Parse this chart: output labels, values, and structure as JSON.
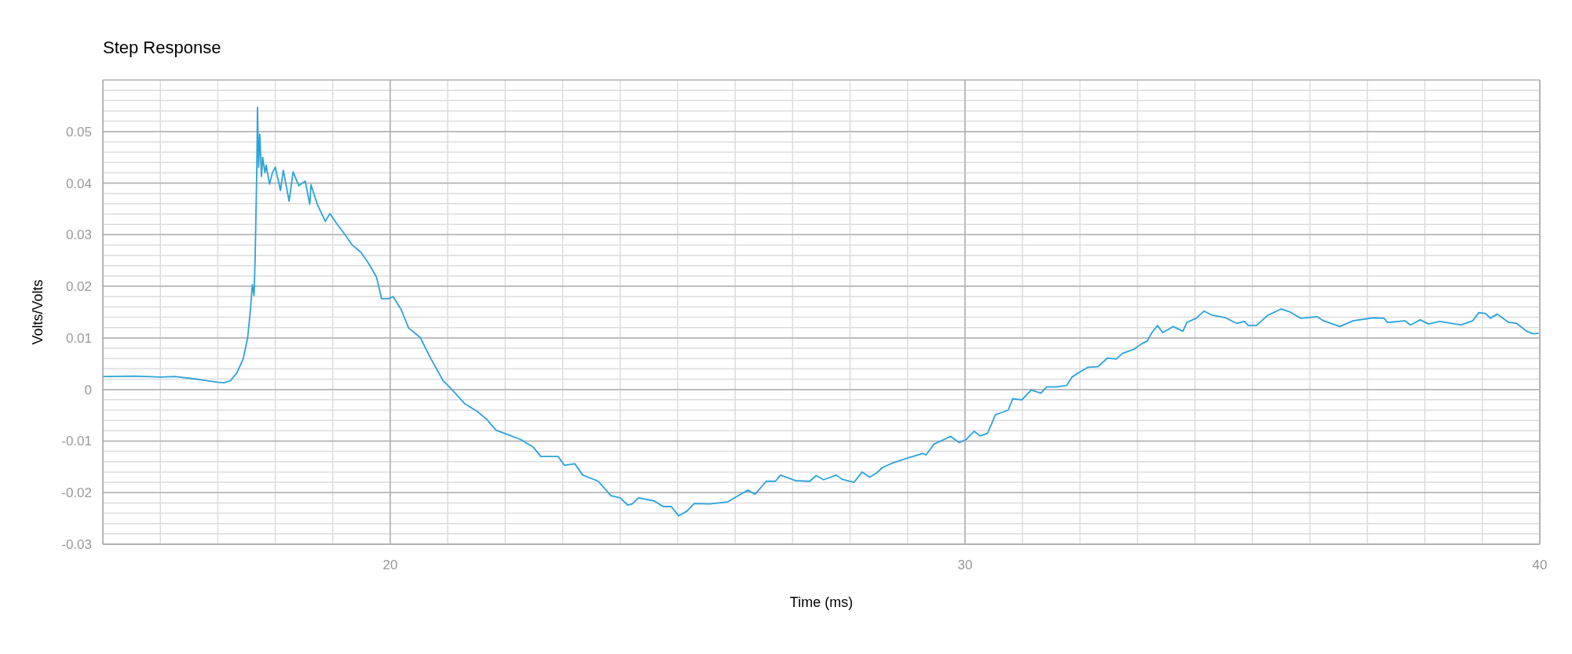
{
  "chart_data": {
    "type": "line",
    "title": "Step Response",
    "xlabel": "Time (ms)",
    "ylabel": "Volts/Volts",
    "xlim": [
      15,
      40
    ],
    "ylim": [
      -0.03,
      0.06
    ],
    "xticks": [
      {
        "value": 16,
        "label": null
      },
      {
        "value": 17,
        "label": null
      },
      {
        "value": 18,
        "label": null
      },
      {
        "value": 19,
        "label": null
      },
      20,
      {
        "value": 21,
        "label": null
      },
      {
        "value": 22,
        "label": null
      },
      {
        "value": 23,
        "label": null
      },
      {
        "value": 24,
        "label": null
      },
      {
        "value": 25,
        "label": null
      },
      {
        "value": 26,
        "label": null
      },
      {
        "value": 27,
        "label": null
      },
      {
        "value": 28,
        "label": null
      },
      {
        "value": 29,
        "label": null
      },
      30,
      {
        "value": 31,
        "label": null
      },
      {
        "value": 32,
        "label": null
      },
      {
        "value": 33,
        "label": null
      },
      {
        "value": 34,
        "label": null
      },
      {
        "value": 35,
        "label": null
      },
      {
        "value": 36,
        "label": null
      },
      {
        "value": 37,
        "label": null
      },
      {
        "value": 38,
        "label": null
      },
      {
        "value": 39,
        "label": null
      },
      40
    ],
    "yticks": [
      -0.03,
      {
        "value": -0.028,
        "label": null
      },
      {
        "value": -0.026,
        "label": null
      },
      {
        "value": -0.024,
        "label": null
      },
      {
        "value": -0.022,
        "label": null
      },
      -0.02,
      {
        "value": -0.018,
        "label": null
      },
      {
        "value": -0.016,
        "label": null
      },
      {
        "value": -0.014,
        "label": null
      },
      {
        "value": -0.012,
        "label": null
      },
      -0.01,
      {
        "value": -0.008,
        "label": null
      },
      {
        "value": -0.006,
        "label": null
      },
      {
        "value": -0.004,
        "label": null
      },
      {
        "value": -0.002,
        "label": null
      },
      0,
      {
        "value": 0.002,
        "label": null
      },
      {
        "value": 0.004,
        "label": null
      },
      {
        "value": 0.006,
        "label": null
      },
      {
        "value": 0.008,
        "label": null
      },
      0.01,
      {
        "value": 0.012,
        "label": null
      },
      {
        "value": 0.014,
        "label": null
      },
      {
        "value": 0.016,
        "label": null
      },
      {
        "value": 0.018,
        "label": null
      },
      0.02,
      {
        "value": 0.022,
        "label": null
      },
      {
        "value": 0.024,
        "label": null
      },
      {
        "value": 0.026,
        "label": null
      },
      {
        "value": 0.028,
        "label": null
      },
      0.03,
      {
        "value": 0.032,
        "label": null
      },
      {
        "value": 0.034,
        "label": null
      },
      {
        "value": 0.036,
        "label": null
      },
      {
        "value": 0.038,
        "label": null
      },
      0.04,
      {
        "value": 0.042,
        "label": null
      },
      {
        "value": 0.044,
        "label": null
      },
      {
        "value": 0.046,
        "label": null
      },
      {
        "value": 0.048,
        "label": null
      },
      0.05,
      {
        "value": 0.052,
        "label": null
      },
      {
        "value": 0.054,
        "label": null
      },
      {
        "value": 0.056,
        "label": null
      },
      {
        "value": 0.058,
        "label": null
      }
    ],
    "grid": true,
    "legend": false,
    "marker": "none",
    "line_style": "solid",
    "x": [
      15,
      15.58,
      16.0,
      16.25,
      16.63,
      16.99,
      17.11,
      17.22,
      17.33,
      17.44,
      17.52,
      17.57,
      17.6,
      17.63,
      17.65,
      17.68,
      17.69,
      17.71,
      17.73,
      17.76,
      17.78,
      17.82,
      17.84,
      17.9,
      17.95,
      18.0,
      18.09,
      18.14,
      18.24,
      18.31,
      18.41,
      18.52,
      18.6,
      18.62,
      18.73,
      18.87,
      18.95,
      19.06,
      19.22,
      19.33,
      19.49,
      19.62,
      19.76,
      19.85,
      19.97,
      20.05,
      20.19,
      20.32,
      20.52,
      20.71,
      20.92,
      21.08,
      21.3,
      21.52,
      21.68,
      21.84,
      22.06,
      22.27,
      22.49,
      22.62,
      22.92,
      23.03,
      23.21,
      23.35,
      23.62,
      23.84,
      24.0,
      24.13,
      24.21,
      24.32,
      24.59,
      24.75,
      24.89,
      25.02,
      25.16,
      25.29,
      25.56,
      25.87,
      26.22,
      26.35,
      26.54,
      26.7,
      26.79,
      27.06,
      27.3,
      27.41,
      27.54,
      27.76,
      27.86,
      28.07,
      28.21,
      28.34,
      28.46,
      28.57,
      28.75,
      29.0,
      29.27,
      29.32,
      29.46,
      29.75,
      29.9,
      30.02,
      30.16,
      30.26,
      30.39,
      30.53,
      30.75,
      30.83,
      30.99,
      31.15,
      31.32,
      31.42,
      31.59,
      31.77,
      31.86,
      32.0,
      32.14,
      32.31,
      32.48,
      32.63,
      32.74,
      32.94,
      33.08,
      33.17,
      33.25,
      33.35,
      33.44,
      33.62,
      33.79,
      33.86,
      34.02,
      34.16,
      34.3,
      34.53,
      34.73,
      34.86,
      34.93,
      35.07,
      35.27,
      35.5,
      35.64,
      35.84,
      36.13,
      36.24,
      36.52,
      36.75,
      37.1,
      37.29,
      37.35,
      37.66,
      37.75,
      37.92,
      38.06,
      38.26,
      38.63,
      38.83,
      38.94,
      39.06,
      39.14,
      39.26,
      39.46,
      39.6,
      39.77,
      39.88,
      39.98
    ],
    "series": [
      {
        "color": "#2aa3dc",
        "values": [
          0.0025,
          0.0026,
          0.0024,
          0.0025,
          0.002,
          0.0014,
          0.0013,
          0.0017,
          0.0032,
          0.0059,
          0.0101,
          0.0158,
          0.0203,
          0.0182,
          0.0257,
          0.0437,
          0.0547,
          0.0431,
          0.0495,
          0.0413,
          0.045,
          0.042,
          0.0435,
          0.0398,
          0.042,
          0.0431,
          0.0386,
          0.0425,
          0.0365,
          0.0422,
          0.0395,
          0.0404,
          0.0359,
          0.0397,
          0.0359,
          0.0326,
          0.0341,
          0.0323,
          0.0299,
          0.0281,
          0.0266,
          0.0245,
          0.0218,
          0.0176,
          0.0176,
          0.018,
          0.0155,
          0.0119,
          0.0101,
          0.0059,
          0.0017,
          -0.0001,
          -0.0028,
          -0.0043,
          -0.0058,
          -0.0079,
          -0.0088,
          -0.0097,
          -0.0112,
          -0.013,
          -0.013,
          -0.0147,
          -0.0144,
          -0.0166,
          -0.0178,
          -0.0206,
          -0.021,
          -0.0224,
          -0.0222,
          -0.021,
          -0.0216,
          -0.0227,
          -0.0227,
          -0.0245,
          -0.0236,
          -0.0221,
          -0.0222,
          -0.0218,
          -0.0195,
          -0.0203,
          -0.0178,
          -0.0178,
          -0.0166,
          -0.0177,
          -0.0178,
          -0.0167,
          -0.0175,
          -0.0166,
          -0.0174,
          -0.018,
          -0.016,
          -0.017,
          -0.0162,
          -0.0151,
          -0.0142,
          -0.0133,
          -0.0124,
          -0.0127,
          -0.0106,
          -0.0091,
          -0.0103,
          -0.0097,
          -0.0081,
          -0.009,
          -0.0085,
          -0.0049,
          -0.004,
          -0.0018,
          -0.002,
          -0.0001,
          -0.0007,
          0.0005,
          0.0005,
          0.0008,
          0.0024,
          0.0034,
          0.0043,
          0.0044,
          0.0061,
          0.0059,
          0.007,
          0.0078,
          0.0089,
          0.0094,
          0.011,
          0.0124,
          0.011,
          0.0122,
          0.0113,
          0.013,
          0.0138,
          0.0152,
          0.0144,
          0.0139,
          0.0128,
          0.0132,
          0.0124,
          0.0124,
          0.0144,
          0.0156,
          0.0151,
          0.0138,
          0.0141,
          0.0133,
          0.0122,
          0.0133,
          0.0139,
          0.0138,
          0.013,
          0.0133,
          0.0125,
          0.0135,
          0.0127,
          0.0132,
          0.0125,
          0.0133,
          0.0149,
          0.0147,
          0.0138,
          0.0146,
          0.013,
          0.0128,
          0.0113,
          0.0108,
          0.0109
        ]
      }
    ]
  }
}
